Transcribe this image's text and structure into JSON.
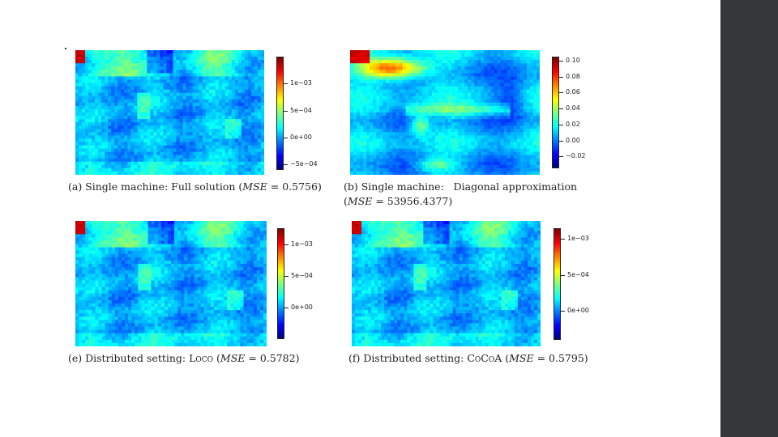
{
  "colors": {
    "background": "#ffffff",
    "right_bar": "#34383b",
    "colormap": [
      "#00007f",
      "#0000ff",
      "#007fff",
      "#00ffff",
      "#7fff7f",
      "#ffff00",
      "#ff7f00",
      "#ff0000",
      "#7f0000"
    ]
  },
  "chart_data": [
    {
      "type": "heatmap",
      "panel": "a",
      "caption": {
        "prefix": "(a) Single machine: Full solution (",
        "metric": "MSE",
        "eq": " = 0.5756)"
      },
      "colorbar": {
        "range": [
          -0.0006,
          0.0015
        ],
        "ticks": [
          {
            "value": 0.001,
            "label": "1e−03"
          },
          {
            "value": 0.0005,
            "label": "5e−04"
          },
          {
            "value": 0.0,
            "label": "0e+00"
          },
          {
            "value": -0.0005,
            "label": "−5e−04"
          }
        ]
      },
      "field": "small"
    },
    {
      "type": "heatmap",
      "panel": "b",
      "caption": {
        "prefix": "(b) Single machine:   Diagonal approximation",
        "line2_open": "(",
        "metric": "MSE",
        "eq": " = 53956.4377)"
      },
      "colorbar": {
        "range": [
          -0.035,
          0.105
        ],
        "ticks": [
          {
            "value": 0.1,
            "label": "0.10"
          },
          {
            "value": 0.08,
            "label": "0.08"
          },
          {
            "value": 0.06,
            "label": "0.06"
          },
          {
            "value": 0.04,
            "label": "0.04"
          },
          {
            "value": 0.02,
            "label": "0.02"
          },
          {
            "value": 0.0,
            "label": "0.00"
          },
          {
            "value": -0.02,
            "label": "−0.02"
          }
        ]
      },
      "field": "diagonal"
    },
    {
      "type": "heatmap",
      "panel": "e",
      "caption": {
        "prefix": "(e) Distributed setting: ",
        "method": "Loco",
        "metric_open": " (",
        "metric": "MSE",
        "eq": " = 0.5782)"
      },
      "colorbar": {
        "range": [
          -0.0005,
          0.00125
        ],
        "ticks": [
          {
            "value": 0.001,
            "label": "1e−03"
          },
          {
            "value": 0.0005,
            "label": "5e−04"
          },
          {
            "value": 0.0,
            "label": "0e+00"
          }
        ]
      },
      "field": "small"
    },
    {
      "type": "heatmap",
      "panel": "f",
      "caption": {
        "prefix": "(f) Distributed setting: ",
        "method": "CoCoA",
        "metric_open": " (",
        "metric": "MSE",
        "eq": " = 0.5795)"
      },
      "colorbar": {
        "range": [
          -0.0004,
          0.00115
        ],
        "ticks": [
          {
            "value": 0.001,
            "label": "1e−03"
          },
          {
            "value": 0.0005,
            "label": "5e−04"
          },
          {
            "value": 0.0,
            "label": "0e+00"
          }
        ]
      },
      "field": "small"
    }
  ]
}
